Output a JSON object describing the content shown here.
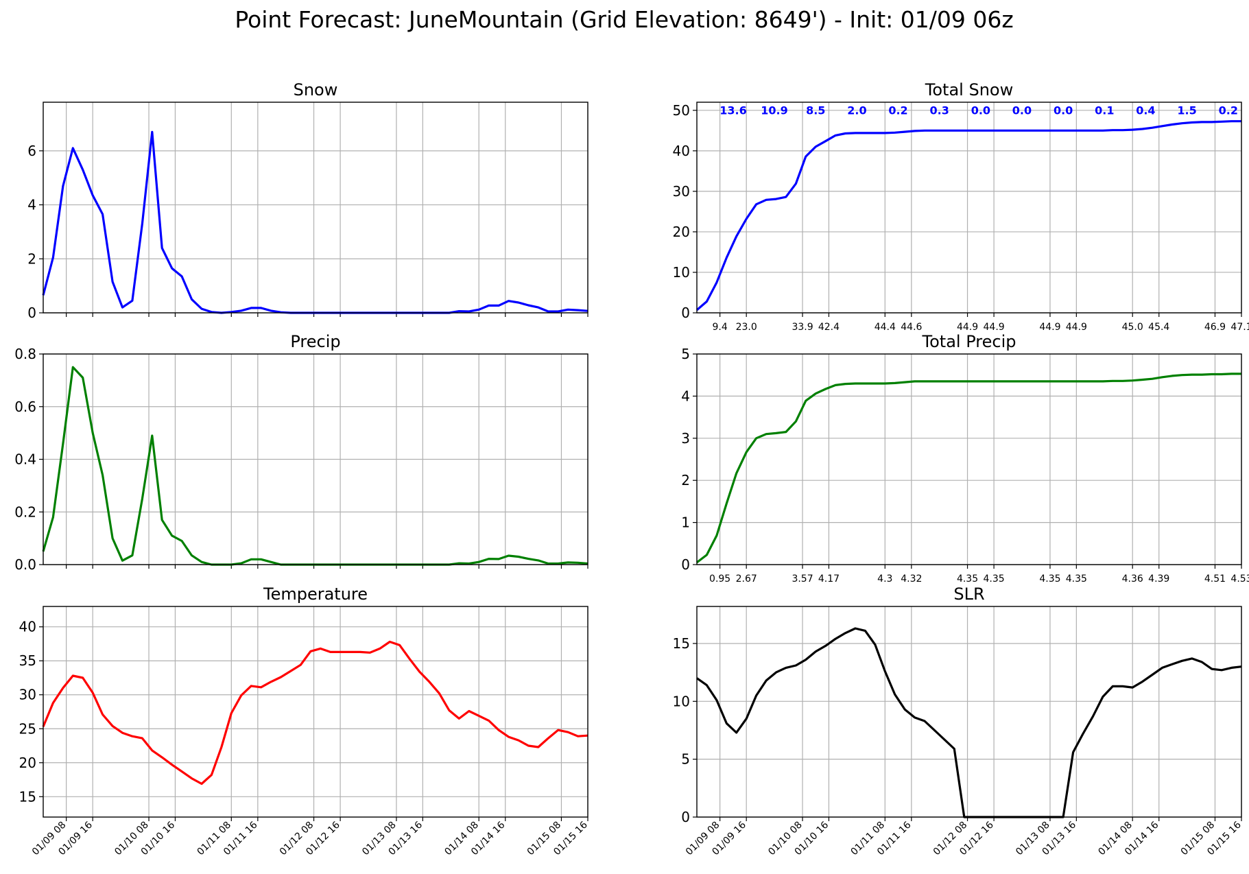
{
  "suptitle": "Point Forecast: JuneMountain (Grid Elevation: 8649') - Init: 01/09 06z",
  "x_tick_labels": [
    "01/09 08",
    "01/09 16",
    "01/10 08",
    "01/10 16",
    "01/11 08",
    "01/11 16",
    "01/12 08",
    "01/12 16",
    "01/13 08",
    "01/13 16",
    "01/14 08",
    "01/14 16",
    "01/15 08",
    "01/15 16"
  ],
  "chart_data": [
    {
      "id": "snow",
      "type": "line",
      "title": "Snow",
      "color": "#0000ff",
      "ylim": [
        0,
        7.8
      ],
      "yticks": [
        0,
        2,
        4,
        6
      ],
      "grid": true,
      "values": [
        0.65,
        2.05,
        4.7,
        6.1,
        5.3,
        4.35,
        3.65,
        1.15,
        0.2,
        0.45,
        3.3,
        6.7,
        2.4,
        1.65,
        1.35,
        0.5,
        0.15,
        0.03,
        0.0,
        0.03,
        0.08,
        0.18,
        0.18,
        0.08,
        0.02,
        0.0,
        0.0,
        0.0,
        0.0,
        0.0,
        0.0,
        0.0,
        0.0,
        0.0,
        0.0,
        0.0,
        0.0,
        0.0,
        0.0,
        0.0,
        0.0,
        0.0,
        0.06,
        0.05,
        0.12,
        0.27,
        0.27,
        0.44,
        0.38,
        0.28,
        0.2,
        0.05,
        0.05,
        0.12,
        0.1,
        0.07
      ]
    },
    {
      "id": "total_snow",
      "type": "line",
      "title": "Total Snow",
      "color": "#0000ff",
      "ylim": [
        0,
        52
      ],
      "yticks": [
        0,
        10,
        20,
        30,
        40,
        50
      ],
      "grid": true,
      "values": [
        0.7,
        2.8,
        7.5,
        13.6,
        18.9,
        23.2,
        26.8,
        27.9,
        28.1,
        28.6,
        31.9,
        38.6,
        41.0,
        42.4,
        43.8,
        44.3,
        44.4,
        44.4,
        44.4,
        44.4,
        44.5,
        44.7,
        44.9,
        45.0,
        45.0,
        45.0,
        45.0,
        45.0,
        45.0,
        45.0,
        45.0,
        45.0,
        45.0,
        45.0,
        45.0,
        45.0,
        45.0,
        45.0,
        45.0,
        45.0,
        45.0,
        45.0,
        45.1,
        45.1,
        45.2,
        45.4,
        45.7,
        46.1,
        46.5,
        46.8,
        47.0,
        47.1,
        47.1,
        47.2,
        47.3,
        47.3
      ],
      "period_totals": [
        "13.6",
        "10.9",
        "8.5",
        "2.0",
        "0.2",
        "0.3",
        "0.0",
        "0.0",
        "0.0",
        "0.1",
        "0.4",
        "1.5",
        "0.2"
      ],
      "cumulative_labels": [
        "9.4",
        "23.0",
        "33.9",
        "42.4",
        "44.4",
        "44.6",
        "44.9",
        "44.9",
        "44.9",
        "44.9",
        "45.0",
        "45.4",
        "46.9",
        "47.1"
      ]
    },
    {
      "id": "precip",
      "type": "line",
      "title": "Precip",
      "color": "#008000",
      "ylim": [
        0,
        0.8
      ],
      "yticks": [
        0,
        0.2,
        0.4,
        0.6,
        0.8
      ],
      "grid": true,
      "values": [
        0.05,
        0.18,
        0.46,
        0.75,
        0.71,
        0.5,
        0.34,
        0.1,
        0.015,
        0.035,
        0.25,
        0.49,
        0.17,
        0.11,
        0.09,
        0.035,
        0.01,
        0.0,
        0.0,
        0.0,
        0.005,
        0.02,
        0.02,
        0.01,
        0.0,
        0.0,
        0.0,
        0.0,
        0.0,
        0.0,
        0.0,
        0.0,
        0.0,
        0.0,
        0.0,
        0.0,
        0.0,
        0.0,
        0.0,
        0.0,
        0.0,
        0.0,
        0.005,
        0.004,
        0.01,
        0.022,
        0.021,
        0.034,
        0.03,
        0.022,
        0.016,
        0.004,
        0.004,
        0.008,
        0.007,
        0.004
      ]
    },
    {
      "id": "total_precip",
      "type": "line",
      "title": "Total Precip",
      "color": "#008000",
      "ylim": [
        0,
        5
      ],
      "yticks": [
        0,
        1,
        2,
        3,
        4,
        5
      ],
      "grid": true,
      "values": [
        0.05,
        0.23,
        0.69,
        1.45,
        2.17,
        2.67,
        3.0,
        3.1,
        3.12,
        3.15,
        3.4,
        3.89,
        4.06,
        4.17,
        4.26,
        4.29,
        4.3,
        4.3,
        4.3,
        4.3,
        4.31,
        4.33,
        4.35,
        4.35,
        4.35,
        4.35,
        4.35,
        4.35,
        4.35,
        4.35,
        4.35,
        4.35,
        4.35,
        4.35,
        4.35,
        4.35,
        4.35,
        4.35,
        4.35,
        4.35,
        4.35,
        4.35,
        4.36,
        4.36,
        4.37,
        4.39,
        4.41,
        4.45,
        4.48,
        4.5,
        4.51,
        4.51,
        4.52,
        4.52,
        4.53,
        4.53
      ],
      "cumulative_labels": [
        "0.95",
        "2.67",
        "3.57",
        "4.17",
        "4.3",
        "4.32",
        "4.35",
        "4.35",
        "4.35",
        "4.35",
        "4.36",
        "4.39",
        "4.51",
        "4.53"
      ]
    },
    {
      "id": "temperature",
      "type": "line",
      "title": "Temperature",
      "color": "#ff0000",
      "ylim": [
        12,
        43
      ],
      "yticks": [
        15,
        20,
        25,
        30,
        35,
        40
      ],
      "grid": true,
      "values": [
        25.3,
        28.8,
        31.0,
        32.8,
        32.5,
        30.3,
        27.1,
        25.4,
        24.4,
        23.9,
        23.6,
        21.8,
        20.8,
        19.7,
        18.7,
        17.7,
        16.9,
        18.2,
        22.3,
        27.3,
        29.9,
        31.3,
        31.1,
        31.9,
        32.6,
        33.5,
        34.4,
        36.4,
        36.8,
        36.3,
        36.3,
        36.3,
        36.3,
        36.2,
        36.8,
        37.8,
        37.3,
        35.3,
        33.4,
        31.9,
        30.2,
        27.7,
        26.5,
        27.6,
        26.9,
        26.2,
        24.8,
        23.8,
        23.3,
        22.5,
        22.3,
        23.6,
        24.8,
        24.5,
        23.9,
        24.0
      ]
    },
    {
      "id": "slr",
      "type": "line",
      "title": "SLR",
      "color": "#000000",
      "ylim": [
        0,
        18.2
      ],
      "yticks": [
        0,
        5,
        10,
        15
      ],
      "grid": true,
      "values": [
        12.0,
        11.4,
        10.1,
        8.1,
        7.3,
        8.5,
        10.5,
        11.8,
        12.5,
        12.9,
        13.1,
        13.6,
        14.3,
        14.8,
        15.4,
        15.9,
        16.3,
        16.1,
        14.9,
        12.6,
        10.6,
        9.3,
        8.6,
        8.3,
        7.5,
        6.7,
        5.9,
        0.0,
        0.0,
        0.0,
        0.0,
        0.0,
        0.0,
        0.0,
        0.0,
        0.0,
        0.0,
        0.0,
        5.6,
        7.2,
        8.7,
        10.4,
        11.3,
        11.3,
        11.2,
        11.7,
        12.3,
        12.9,
        13.2,
        13.5,
        13.7,
        13.4,
        12.8,
        12.7,
        12.9,
        13.0
      ]
    }
  ]
}
